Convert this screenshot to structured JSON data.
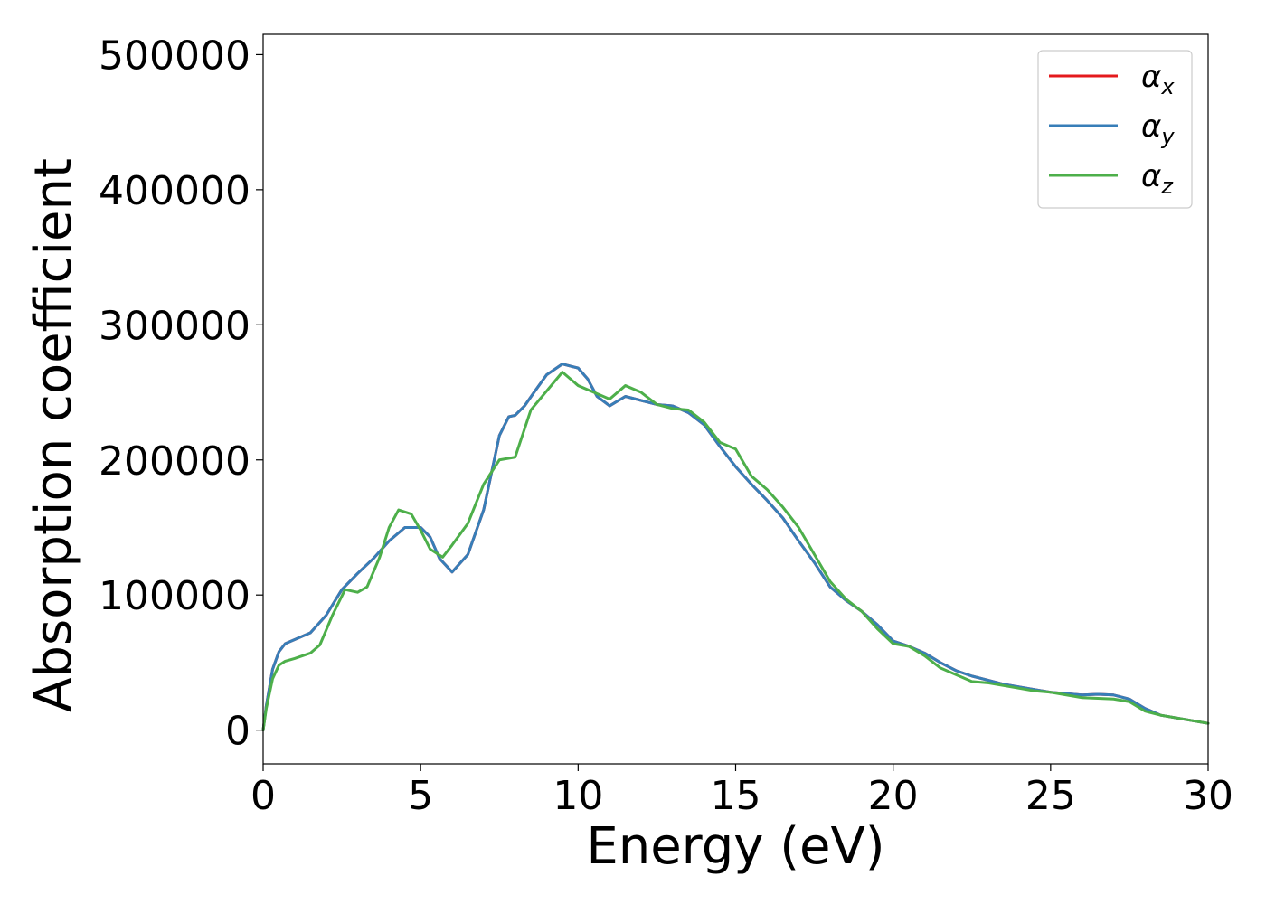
{
  "chart_data": {
    "type": "line",
    "title": "",
    "xlabel": "Energy (eV)",
    "ylabel": "Absorption coefficient",
    "xlim": [
      0,
      30
    ],
    "ylim": [
      -25000,
      515000
    ],
    "xticks": [
      0,
      5,
      10,
      15,
      20,
      25,
      30
    ],
    "yticks": [
      0,
      100000,
      200000,
      300000,
      400000,
      500000
    ],
    "grid": false,
    "legend_position": "top-right",
    "series": [
      {
        "name": "α",
        "subscript": "x",
        "color": "#e41a1c",
        "x": [
          0,
          0.1,
          0.3,
          0.5,
          0.7,
          1.0,
          1.5,
          2.0,
          2.5,
          3.0,
          3.5,
          4.0,
          4.5,
          5.0,
          5.3,
          5.6,
          6.0,
          6.5,
          7.0,
          7.5,
          7.8,
          8.0,
          8.3,
          8.6,
          9.0,
          9.5,
          10.0,
          10.3,
          10.6,
          11.0,
          11.5,
          12.0,
          12.5,
          13.0,
          13.5,
          14.0,
          14.5,
          15.0,
          15.5,
          16.0,
          16.5,
          17.0,
          17.5,
          18.0,
          18.5,
          19.0,
          19.5,
          20.0,
          20.5,
          21.0,
          21.5,
          22.0,
          22.5,
          23.0,
          23.5,
          24.0,
          24.5,
          25.0,
          25.5,
          26.0,
          26.5,
          27.0,
          27.5,
          28.0,
          28.5,
          29.0,
          29.5,
          30.0
        ],
        "values": [
          0,
          18000,
          45000,
          58000,
          64000,
          67000,
          72000,
          85000,
          104000,
          116000,
          127000,
          140000,
          150000,
          150000,
          143000,
          127000,
          117000,
          130000,
          163000,
          218000,
          232000,
          233000,
          240000,
          250000,
          263000,
          271000,
          268000,
          260000,
          247000,
          240000,
          247000,
          244000,
          241000,
          240000,
          235000,
          226000,
          210000,
          195000,
          182000,
          170000,
          157000,
          140000,
          124000,
          106000,
          96000,
          88000,
          78000,
          66000,
          62000,
          57000,
          50000,
          44000,
          40000,
          37000,
          34000,
          32000,
          30000,
          28000,
          27000,
          26000,
          26500,
          26000,
          23000,
          16000,
          11000,
          9000,
          7000,
          5000
        ]
      },
      {
        "name": "α",
        "subscript": "y",
        "color": "#377eb8",
        "x": [
          0,
          0.1,
          0.3,
          0.5,
          0.7,
          1.0,
          1.5,
          2.0,
          2.5,
          3.0,
          3.5,
          4.0,
          4.5,
          5.0,
          5.3,
          5.6,
          6.0,
          6.5,
          7.0,
          7.5,
          7.8,
          8.0,
          8.3,
          8.6,
          9.0,
          9.5,
          10.0,
          10.3,
          10.6,
          11.0,
          11.5,
          12.0,
          12.5,
          13.0,
          13.5,
          14.0,
          14.5,
          15.0,
          15.5,
          16.0,
          16.5,
          17.0,
          17.5,
          18.0,
          18.5,
          19.0,
          19.5,
          20.0,
          20.5,
          21.0,
          21.5,
          22.0,
          22.5,
          23.0,
          23.5,
          24.0,
          24.5,
          25.0,
          25.5,
          26.0,
          26.5,
          27.0,
          27.5,
          28.0,
          28.5,
          29.0,
          29.5,
          30.0
        ],
        "values": [
          0,
          18000,
          45000,
          58000,
          64000,
          67000,
          72000,
          85000,
          104000,
          116000,
          127000,
          140000,
          150000,
          150000,
          143000,
          127000,
          117000,
          130000,
          163000,
          218000,
          232000,
          233000,
          240000,
          250000,
          263000,
          271000,
          268000,
          260000,
          247000,
          240000,
          247000,
          244000,
          241000,
          240000,
          235000,
          226000,
          210000,
          195000,
          182000,
          170000,
          157000,
          140000,
          124000,
          106000,
          96000,
          88000,
          78000,
          66000,
          62000,
          57000,
          50000,
          44000,
          40000,
          37000,
          34000,
          32000,
          30000,
          28000,
          27000,
          26000,
          26500,
          26000,
          23000,
          16000,
          11000,
          9000,
          7000,
          5000
        ]
      },
      {
        "name": "α",
        "subscript": "z",
        "color": "#4daf4a",
        "x": [
          0,
          0.1,
          0.3,
          0.5,
          0.7,
          1.0,
          1.5,
          1.8,
          2.2,
          2.6,
          3.0,
          3.3,
          3.7,
          4.0,
          4.3,
          4.7,
          5.0,
          5.3,
          5.7,
          6.0,
          6.5,
          7.0,
          7.5,
          8.0,
          8.5,
          9.0,
          9.5,
          10.0,
          10.5,
          11.0,
          11.5,
          12.0,
          12.5,
          13.0,
          13.5,
          14.0,
          14.5,
          15.0,
          15.5,
          16.0,
          16.5,
          17.0,
          17.5,
          18.0,
          18.5,
          19.0,
          19.5,
          20.0,
          20.5,
          21.0,
          21.5,
          22.0,
          22.5,
          23.0,
          23.5,
          24.0,
          24.5,
          25.0,
          25.5,
          26.0,
          26.5,
          27.0,
          27.5,
          28.0,
          28.5,
          29.0,
          29.5,
          30.0
        ],
        "values": [
          0,
          16000,
          38000,
          48000,
          51000,
          53000,
          57000,
          63000,
          85000,
          104000,
          102000,
          106000,
          128000,
          150000,
          163000,
          160000,
          148000,
          134000,
          128000,
          137000,
          153000,
          182000,
          200000,
          202000,
          237000,
          251000,
          265000,
          255000,
          250000,
          245000,
          255000,
          250000,
          241000,
          238000,
          237000,
          228000,
          213000,
          208000,
          188000,
          178000,
          165000,
          150000,
          130000,
          110000,
          97000,
          88000,
          75000,
          64000,
          62000,
          55000,
          46000,
          41000,
          36000,
          35000,
          33000,
          31000,
          29000,
          28000,
          26000,
          24000,
          23500,
          23000,
          21000,
          14000,
          11000,
          9000,
          7000,
          5000
        ]
      }
    ]
  }
}
